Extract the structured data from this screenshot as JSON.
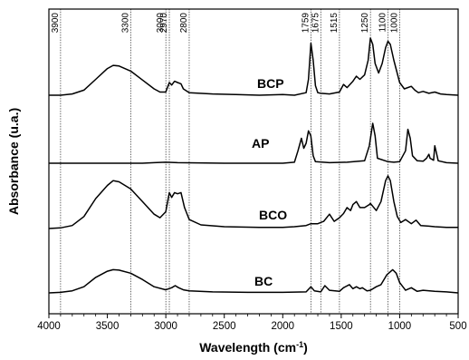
{
  "chart_data": {
    "type": "line",
    "title": "",
    "xlabel": "Wavelength (cm",
    "xlabel_sup": "-1",
    "xlabel_end": ")",
    "ylabel": "Absorbance (u.a.)",
    "xlim": [
      4000,
      500
    ],
    "x_reversed": true,
    "x_ticks": [
      4000,
      3500,
      3000,
      2500,
      2000,
      1500,
      1000,
      500
    ],
    "y_ticks_shown": false,
    "grid": false,
    "legend": "none",
    "reference_lines": [
      3900,
      3300,
      3000,
      2970,
      2800,
      1759,
      1675,
      1515,
      1250,
      1100,
      1000
    ],
    "series": [
      {
        "name": "BCP",
        "baseline": 0.0,
        "points": [
          [
            4000,
            0.0
          ],
          [
            3900,
            0.0
          ],
          [
            3800,
            0.02
          ],
          [
            3700,
            0.08
          ],
          [
            3600,
            0.25
          ],
          [
            3500,
            0.42
          ],
          [
            3450,
            0.47
          ],
          [
            3400,
            0.46
          ],
          [
            3300,
            0.38
          ],
          [
            3200,
            0.24
          ],
          [
            3100,
            0.1
          ],
          [
            3050,
            0.05
          ],
          [
            3000,
            0.05
          ],
          [
            2970,
            0.2
          ],
          [
            2950,
            0.16
          ],
          [
            2925,
            0.22
          ],
          [
            2900,
            0.2
          ],
          [
            2870,
            0.18
          ],
          [
            2850,
            0.1
          ],
          [
            2800,
            0.04
          ],
          [
            2600,
            0.02
          ],
          [
            2400,
            0.01
          ],
          [
            2200,
            0.0
          ],
          [
            2000,
            0.01
          ],
          [
            1900,
            0.0
          ],
          [
            1800,
            0.04
          ],
          [
            1780,
            0.25
          ],
          [
            1759,
            0.82
          ],
          [
            1740,
            0.55
          ],
          [
            1720,
            0.15
          ],
          [
            1700,
            0.04
          ],
          [
            1675,
            0.03
          ],
          [
            1600,
            0.02
          ],
          [
            1515,
            0.05
          ],
          [
            1480,
            0.17
          ],
          [
            1450,
            0.12
          ],
          [
            1400,
            0.22
          ],
          [
            1370,
            0.3
          ],
          [
            1340,
            0.25
          ],
          [
            1300,
            0.32
          ],
          [
            1270,
            0.55
          ],
          [
            1250,
            0.9
          ],
          [
            1230,
            0.8
          ],
          [
            1210,
            0.5
          ],
          [
            1180,
            0.35
          ],
          [
            1150,
            0.5
          ],
          [
            1120,
            0.75
          ],
          [
            1100,
            0.85
          ],
          [
            1080,
            0.8
          ],
          [
            1050,
            0.55
          ],
          [
            1000,
            0.2
          ],
          [
            960,
            0.1
          ],
          [
            900,
            0.14
          ],
          [
            870,
            0.08
          ],
          [
            840,
            0.04
          ],
          [
            800,
            0.06
          ],
          [
            750,
            0.03
          ],
          [
            700,
            0.05
          ],
          [
            650,
            0.02
          ],
          [
            600,
            0.01
          ],
          [
            500,
            0.0
          ]
        ]
      },
      {
        "name": "AP",
        "baseline": 0.0,
        "points": [
          [
            4000,
            0.0
          ],
          [
            3200,
            0.0
          ],
          [
            3100,
            0.01
          ],
          [
            3000,
            0.02
          ],
          [
            2900,
            0.01
          ],
          [
            2500,
            0.0
          ],
          [
            2000,
            0.0
          ],
          [
            1900,
            0.02
          ],
          [
            1870,
            0.25
          ],
          [
            1840,
            0.5
          ],
          [
            1820,
            0.3
          ],
          [
            1800,
            0.4
          ],
          [
            1780,
            0.65
          ],
          [
            1760,
            0.55
          ],
          [
            1740,
            0.15
          ],
          [
            1720,
            0.03
          ],
          [
            1600,
            0.01
          ],
          [
            1450,
            0.02
          ],
          [
            1300,
            0.05
          ],
          [
            1260,
            0.35
          ],
          [
            1230,
            0.8
          ],
          [
            1210,
            0.55
          ],
          [
            1190,
            0.1
          ],
          [
            1100,
            0.03
          ],
          [
            1050,
            0.02
          ],
          [
            1000,
            0.03
          ],
          [
            950,
            0.25
          ],
          [
            930,
            0.68
          ],
          [
            910,
            0.5
          ],
          [
            890,
            0.15
          ],
          [
            850,
            0.05
          ],
          [
            800,
            0.04
          ],
          [
            770,
            0.1
          ],
          [
            750,
            0.18
          ],
          [
            740,
            0.1
          ],
          [
            710,
            0.06
          ],
          [
            700,
            0.35
          ],
          [
            690,
            0.25
          ],
          [
            670,
            0.05
          ],
          [
            600,
            0.01
          ],
          [
            500,
            0.0
          ]
        ]
      },
      {
        "name": "BCO",
        "baseline": 0.0,
        "points": [
          [
            4000,
            0.0
          ],
          [
            3900,
            0.01
          ],
          [
            3800,
            0.05
          ],
          [
            3700,
            0.2
          ],
          [
            3600,
            0.5
          ],
          [
            3500,
            0.72
          ],
          [
            3450,
            0.8
          ],
          [
            3400,
            0.78
          ],
          [
            3300,
            0.66
          ],
          [
            3200,
            0.45
          ],
          [
            3100,
            0.24
          ],
          [
            3050,
            0.18
          ],
          [
            3000,
            0.28
          ],
          [
            2970,
            0.6
          ],
          [
            2950,
            0.52
          ],
          [
            2925,
            0.6
          ],
          [
            2900,
            0.58
          ],
          [
            2870,
            0.6
          ],
          [
            2840,
            0.35
          ],
          [
            2800,
            0.15
          ],
          [
            2700,
            0.06
          ],
          [
            2500,
            0.03
          ],
          [
            2200,
            0.02
          ],
          [
            2000,
            0.02
          ],
          [
            1900,
            0.03
          ],
          [
            1800,
            0.05
          ],
          [
            1759,
            0.08
          ],
          [
            1700,
            0.08
          ],
          [
            1650,
            0.12
          ],
          [
            1600,
            0.24
          ],
          [
            1560,
            0.12
          ],
          [
            1515,
            0.18
          ],
          [
            1480,
            0.25
          ],
          [
            1450,
            0.35
          ],
          [
            1420,
            0.3
          ],
          [
            1400,
            0.4
          ],
          [
            1370,
            0.45
          ],
          [
            1340,
            0.35
          ],
          [
            1300,
            0.35
          ],
          [
            1260,
            0.4
          ],
          [
            1250,
            0.42
          ],
          [
            1200,
            0.3
          ],
          [
            1160,
            0.45
          ],
          [
            1120,
            0.8
          ],
          [
            1100,
            0.88
          ],
          [
            1080,
            0.8
          ],
          [
            1050,
            0.45
          ],
          [
            1020,
            0.2
          ],
          [
            990,
            0.1
          ],
          [
            950,
            0.15
          ],
          [
            900,
            0.08
          ],
          [
            860,
            0.14
          ],
          [
            820,
            0.05
          ],
          [
            750,
            0.04
          ],
          [
            700,
            0.03
          ],
          [
            600,
            0.02
          ],
          [
            500,
            0.02
          ]
        ]
      },
      {
        "name": "BC",
        "baseline": 0.0,
        "points": [
          [
            4000,
            0.0
          ],
          [
            3900,
            0.01
          ],
          [
            3800,
            0.04
          ],
          [
            3700,
            0.12
          ],
          [
            3600,
            0.3
          ],
          [
            3500,
            0.42
          ],
          [
            3450,
            0.45
          ],
          [
            3400,
            0.44
          ],
          [
            3300,
            0.38
          ],
          [
            3200,
            0.26
          ],
          [
            3100,
            0.12
          ],
          [
            3000,
            0.06
          ],
          [
            2950,
            0.1
          ],
          [
            2920,
            0.14
          ],
          [
            2890,
            0.1
          ],
          [
            2850,
            0.06
          ],
          [
            2800,
            0.04
          ],
          [
            2600,
            0.02
          ],
          [
            2300,
            0.01
          ],
          [
            2000,
            0.01
          ],
          [
            1800,
            0.02
          ],
          [
            1759,
            0.12
          ],
          [
            1730,
            0.04
          ],
          [
            1675,
            0.02
          ],
          [
            1640,
            0.14
          ],
          [
            1600,
            0.05
          ],
          [
            1515,
            0.03
          ],
          [
            1480,
            0.1
          ],
          [
            1430,
            0.16
          ],
          [
            1400,
            0.08
          ],
          [
            1370,
            0.12
          ],
          [
            1340,
            0.08
          ],
          [
            1320,
            0.1
          ],
          [
            1280,
            0.04
          ],
          [
            1250,
            0.05
          ],
          [
            1200,
            0.12
          ],
          [
            1160,
            0.16
          ],
          [
            1110,
            0.35
          ],
          [
            1060,
            0.45
          ],
          [
            1030,
            0.38
          ],
          [
            1000,
            0.2
          ],
          [
            950,
            0.05
          ],
          [
            900,
            0.1
          ],
          [
            850,
            0.03
          ],
          [
            800,
            0.05
          ],
          [
            700,
            0.03
          ],
          [
            600,
            0.02
          ],
          [
            500,
            0.0
          ]
        ]
      }
    ]
  }
}
